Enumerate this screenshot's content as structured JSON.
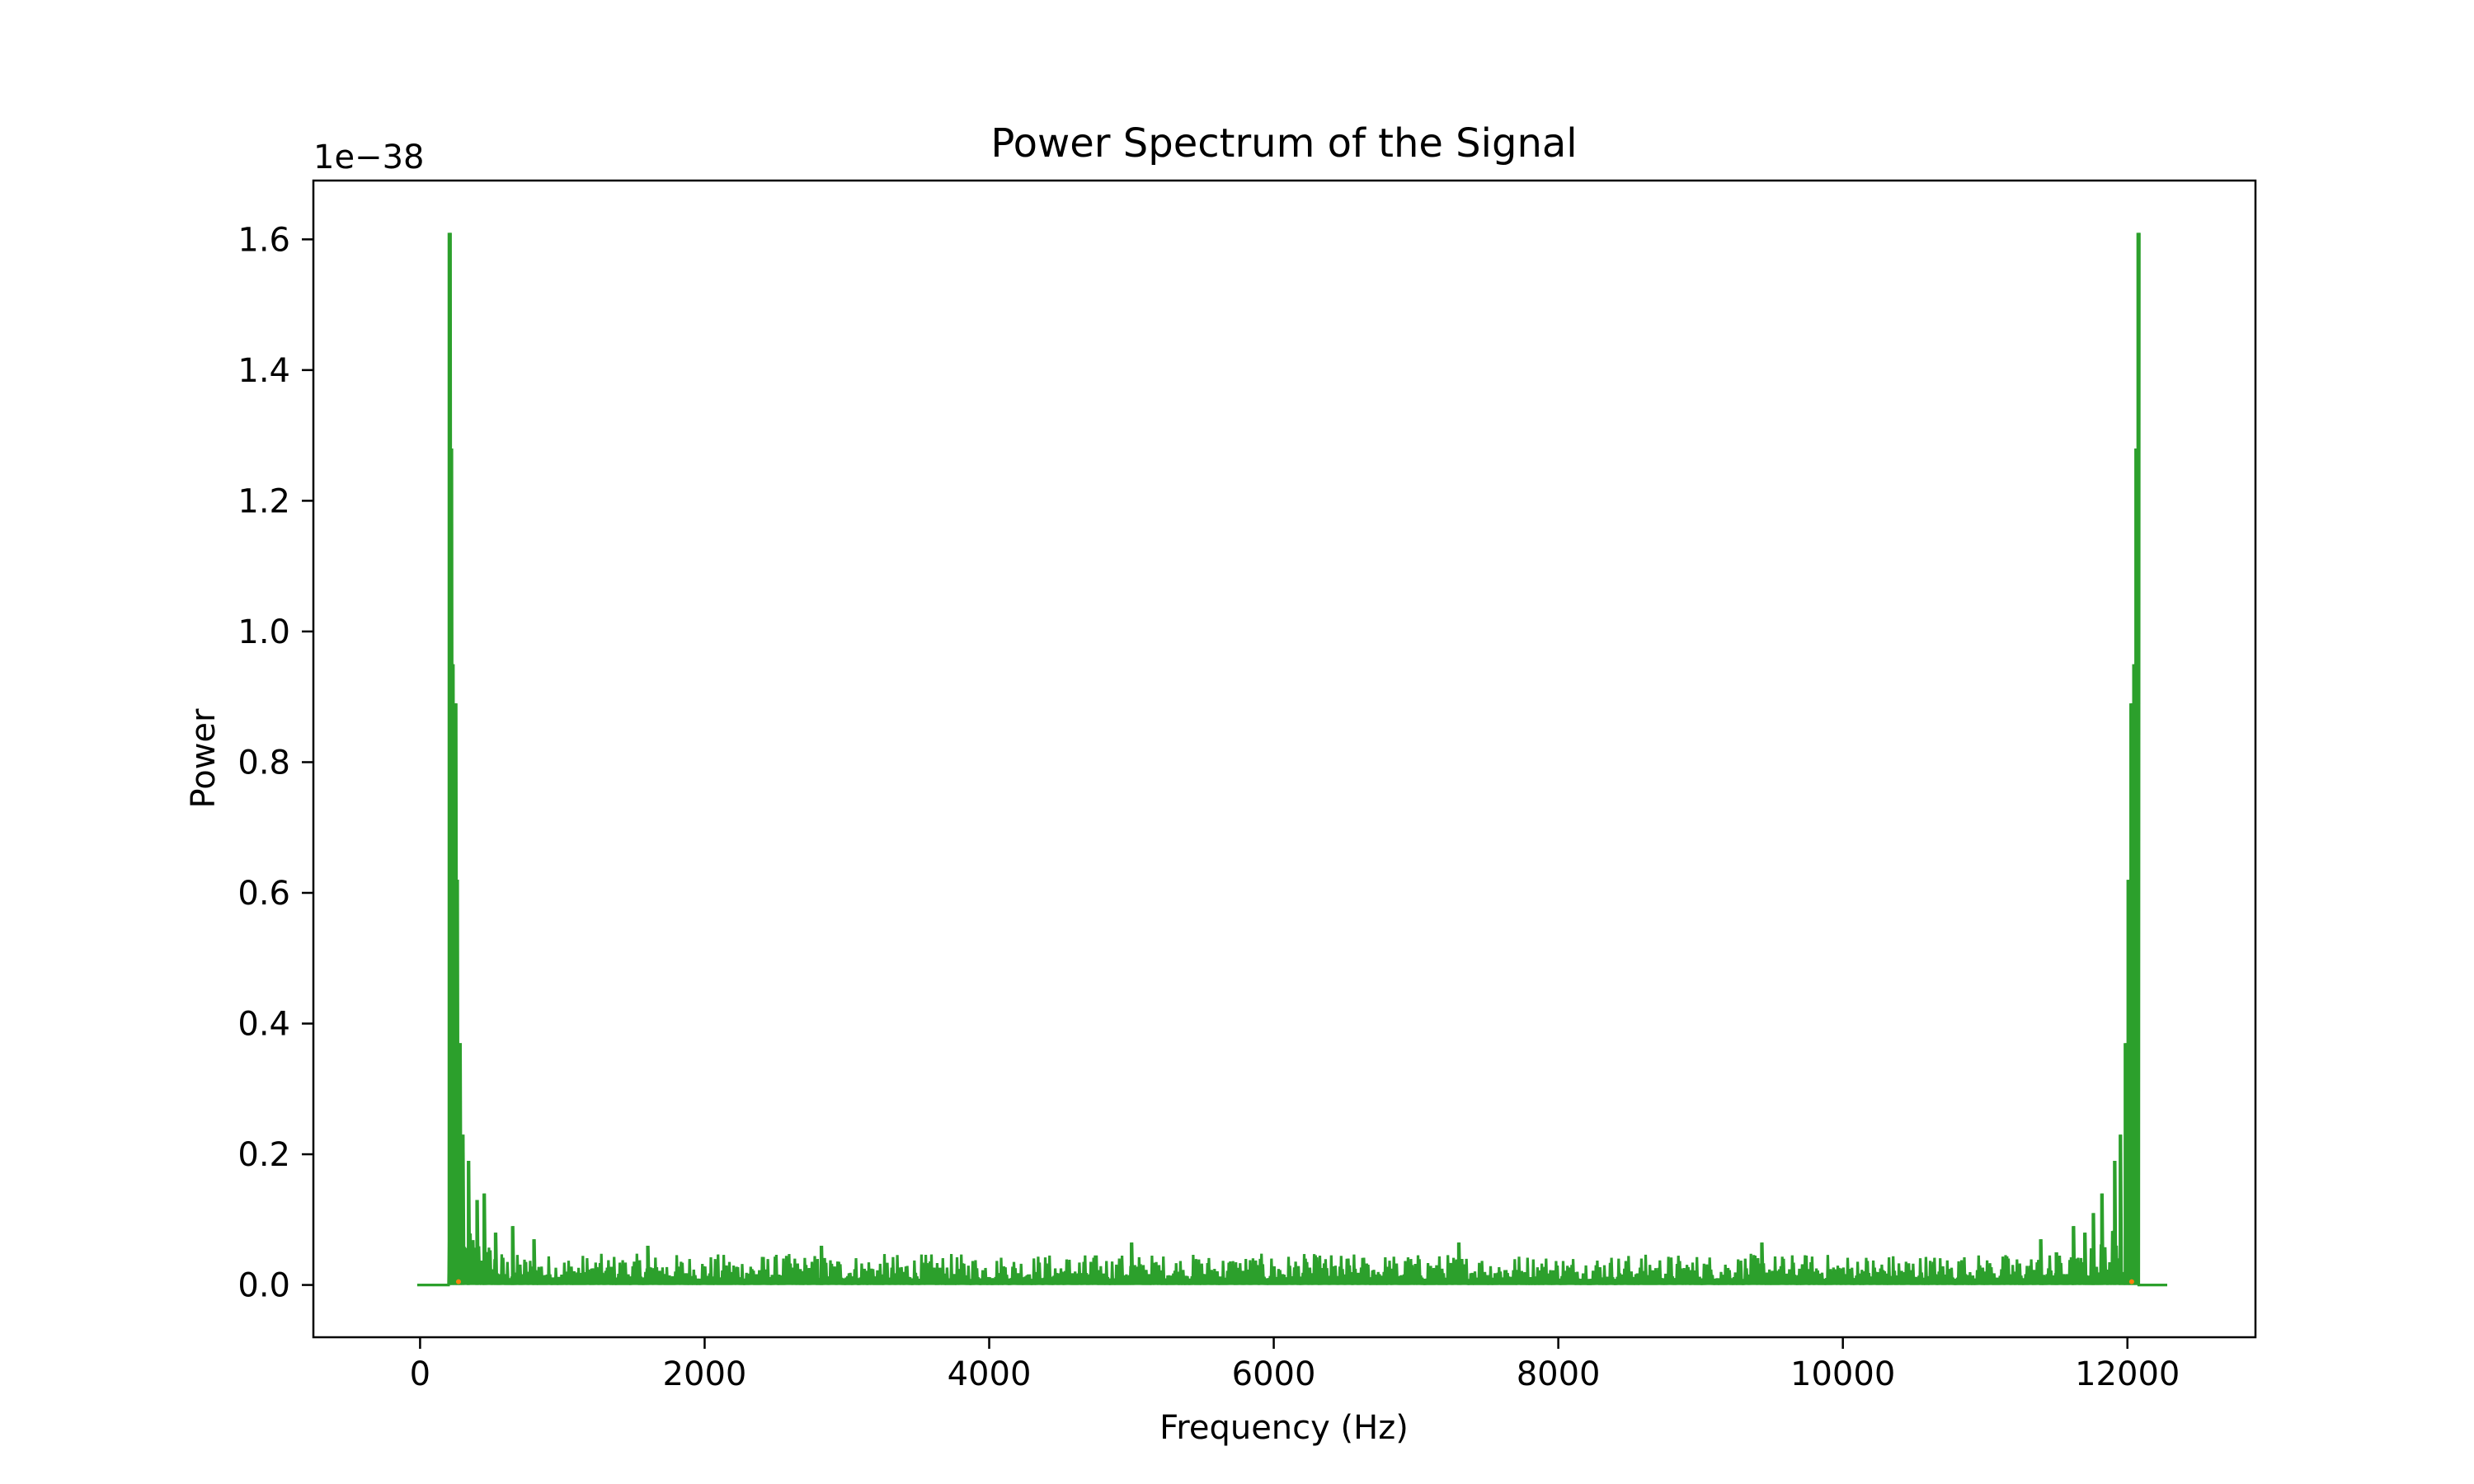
{
  "chart_data": {
    "type": "line",
    "title": "Power Spectrum of the Signal",
    "xlabel": "Frequency (Hz)",
    "ylabel": "Power",
    "y_offset_label": "1e−38",
    "y_scale_factor": 1e-38,
    "xlim": [
      -750,
      12900
    ],
    "ylim": [
      -0.08,
      1.69
    ],
    "xticks": [
      0,
      2000,
      4000,
      6000,
      8000,
      10000,
      12000
    ],
    "xtick_labels": [
      "0",
      "2000",
      "4000",
      "6000",
      "8000",
      "10000",
      "12000"
    ],
    "yticks": [
      0.0,
      0.2,
      0.4,
      0.6,
      0.8,
      1.0,
      1.2,
      1.4,
      1.6
    ],
    "ytick_labels": [
      "0.0",
      "0.2",
      "0.4",
      "0.6",
      "0.8",
      "1.0",
      "1.2",
      "1.4",
      "1.6"
    ],
    "grid": false,
    "legend": "none",
    "colors": {
      "series_main": "#2ca02c",
      "series_minor": "#ff7f0e",
      "axes": "#000000"
    },
    "series": [
      {
        "values_unit": "x 1e-38",
        "x_range": [
          -20,
          12280
        ],
        "band_start": 200,
        "band_end": 12080,
        "noise_level": 0.03,
        "peaks": [
          {
            "x": 205,
            "y": 1.61
          },
          {
            "x": 215,
            "y": 1.28
          },
          {
            "x": 228,
            "y": 0.95
          },
          {
            "x": 245,
            "y": 0.89
          },
          {
            "x": 262,
            "y": 0.62
          },
          {
            "x": 280,
            "y": 0.37
          },
          {
            "x": 300,
            "y": 0.23
          },
          {
            "x": 340,
            "y": 0.19
          },
          {
            "x": 400,
            "y": 0.13
          },
          {
            "x": 450,
            "y": 0.14
          },
          {
            "x": 530,
            "y": 0.08
          },
          {
            "x": 650,
            "y": 0.09
          },
          {
            "x": 800,
            "y": 0.07
          },
          {
            "x": 1600,
            "y": 0.06
          },
          {
            "x": 2820,
            "y": 0.06
          },
          {
            "x": 5000,
            "y": 0.065
          },
          {
            "x": 7300,
            "y": 0.065
          },
          {
            "x": 9430,
            "y": 0.065
          },
          {
            "x": 11390,
            "y": 0.07
          },
          {
            "x": 11500,
            "y": 0.05
          },
          {
            "x": 11620,
            "y": 0.09
          },
          {
            "x": 11700,
            "y": 0.08
          },
          {
            "x": 11760,
            "y": 0.11
          },
          {
            "x": 11820,
            "y": 0.14
          },
          {
            "x": 11910,
            "y": 0.19
          },
          {
            "x": 11950,
            "y": 0.23
          },
          {
            "x": 11985,
            "y": 0.37
          },
          {
            "x": 12005,
            "y": 0.62
          },
          {
            "x": 12025,
            "y": 0.89
          },
          {
            "x": 12045,
            "y": 0.95
          },
          {
            "x": 12060,
            "y": 1.28
          },
          {
            "x": 12075,
            "y": 1.61
          }
        ]
      },
      {
        "values_unit": "x 1e-38",
        "note_visible": false,
        "points": [
          {
            "x": 270,
            "y": 0.005
          },
          {
            "x": 12030,
            "y": 0.005
          }
        ]
      }
    ]
  }
}
